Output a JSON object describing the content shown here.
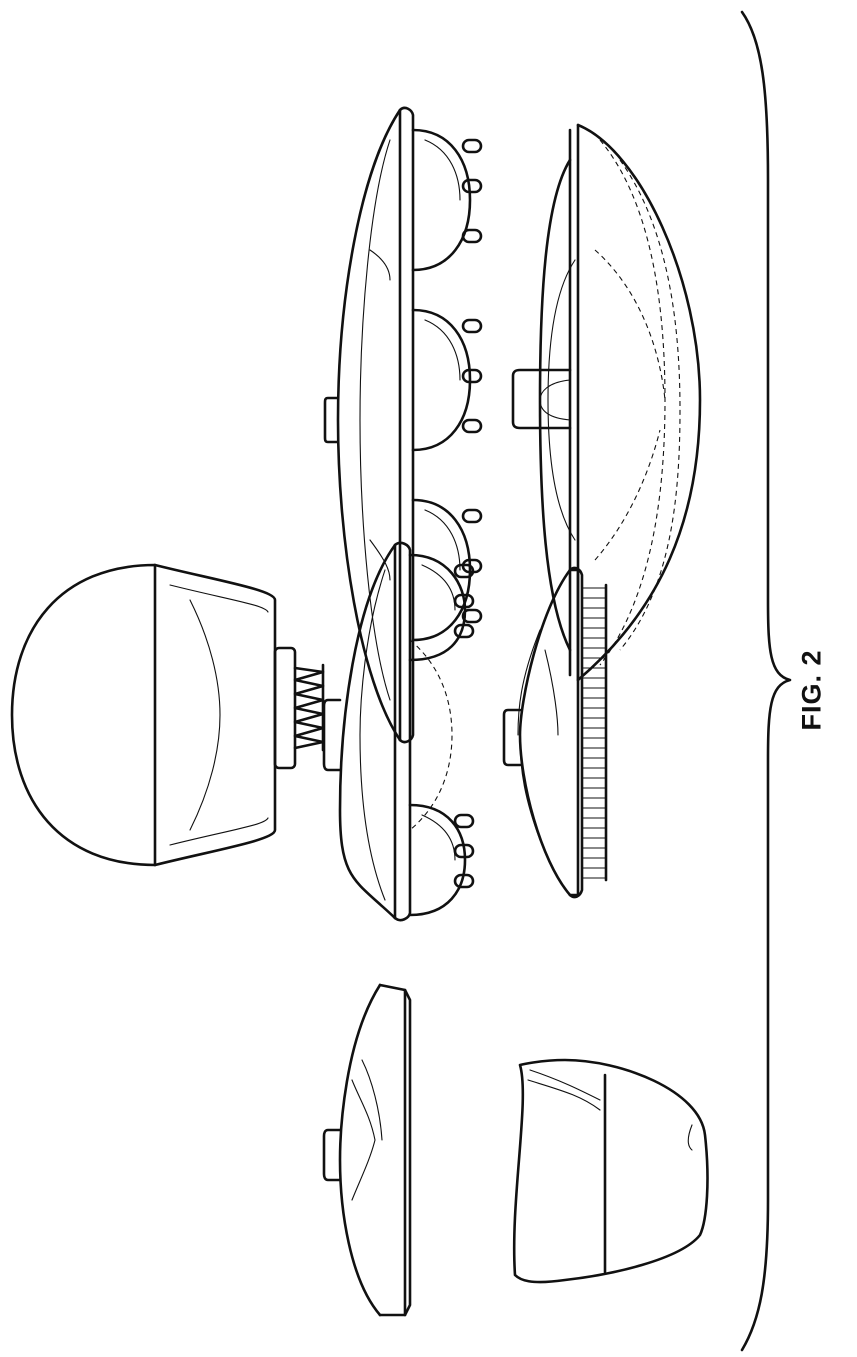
{
  "figure_label": "FIG. 2",
  "ink_color": "#111111",
  "background_color": "#ffffff"
}
